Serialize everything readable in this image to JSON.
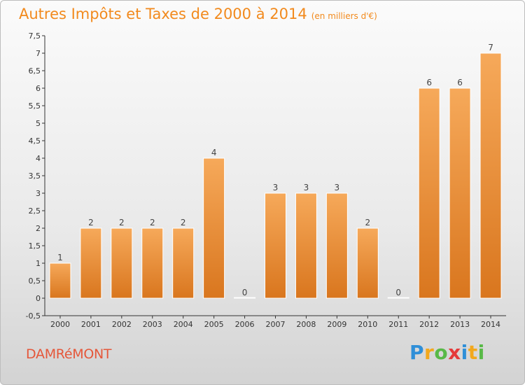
{
  "header": {
    "title": "Autres Impôts et Taxes de 2000 à 2014",
    "subtitle": "(en milliers d'€)"
  },
  "footer": {
    "commune": "DAMRéMONT",
    "logo_letters": [
      {
        "ch": "P",
        "color": "#2f8fd8"
      },
      {
        "ch": "r",
        "color": "#f2a81d"
      },
      {
        "ch": "o",
        "color": "#58b947"
      },
      {
        "ch": "x",
        "color": "#e53a3a"
      },
      {
        "ch": "i",
        "color": "#2f8fd8"
      },
      {
        "ch": "t",
        "color": "#f2a81d"
      },
      {
        "ch": "i",
        "color": "#58b947"
      }
    ]
  },
  "colors": {
    "bar_top": "#f6a95a",
    "bar_bottom": "#d9761e",
    "axis": "#333333",
    "grid": "#d9d9d9",
    "title": "#f28a1d",
    "commune": "#e5573a"
  },
  "chart_data": {
    "type": "bar",
    "title": "Autres Impôts et Taxes de 2000 à 2014",
    "subtitle": "(en milliers d'€)",
    "xlabel": "",
    "ylabel": "",
    "categories": [
      "2000",
      "2001",
      "2002",
      "2003",
      "2004",
      "2005",
      "2006",
      "2007",
      "2008",
      "2009",
      "2010",
      "2011",
      "2012",
      "2013",
      "2014"
    ],
    "values": [
      1,
      2,
      2,
      2,
      2,
      4,
      0,
      3,
      3,
      3,
      2,
      0,
      6,
      6,
      7
    ],
    "data_labels": [
      "1",
      "2",
      "2",
      "2",
      "2",
      "4",
      "0",
      "3",
      "3",
      "3",
      "2",
      "0",
      "6",
      "6",
      "7"
    ],
    "ylim": [
      -0.5,
      7.5
    ],
    "yticks": [
      -0.5,
      0,
      0.5,
      1,
      1.5,
      2,
      2.5,
      3,
      3.5,
      4,
      4.5,
      5,
      5.5,
      6,
      6.5,
      7,
      7.5
    ],
    "ytick_labels": [
      "-0,5",
      "0",
      "0,5",
      "1",
      "1,5",
      "2",
      "2,5",
      "3",
      "3,5",
      "4",
      "4,5",
      "5",
      "5,5",
      "6",
      "6,5",
      "7",
      "7,5"
    ],
    "grid": false,
    "legend": "none"
  }
}
